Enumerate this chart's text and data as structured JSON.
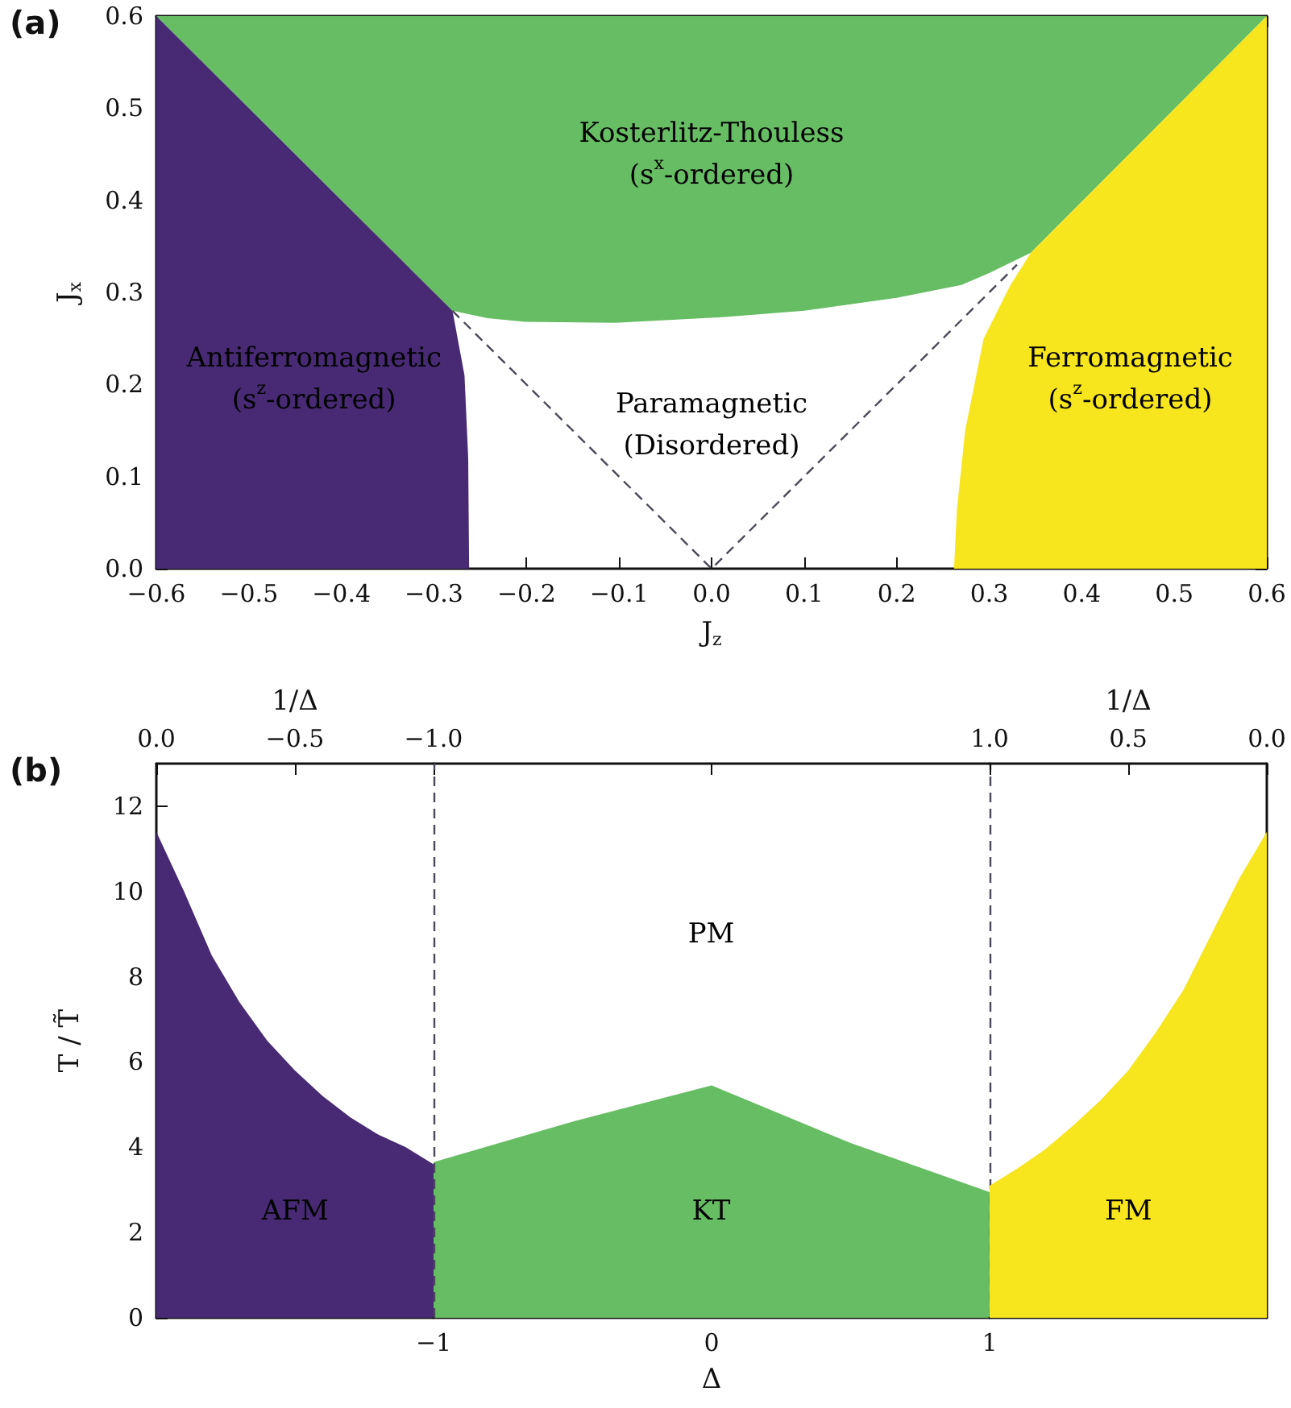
{
  "chart_data": [
    {
      "type": "area",
      "xlabel": "J$_{z}$",
      "ylabel": "J$_{x}$",
      "xlim": [
        -0.6,
        0.6
      ],
      "xticks": [
        {
          "value": -0.6,
          "label": "−0.6"
        },
        {
          "value": -0.5,
          "label": "−0.5"
        },
        {
          "value": -0.4,
          "label": "−0.4"
        },
        {
          "value": -0.3,
          "label": "−0.3"
        },
        {
          "value": -0.2,
          "label": "−0.2"
        },
        {
          "value": -0.1,
          "label": "−0.1"
        },
        {
          "value": 0,
          "label": "0.0"
        },
        0.1,
        0.2,
        0.3,
        0.4,
        0.5,
        0.6
      ],
      "ylim": [
        0,
        0.6
      ],
      "yticks": [
        {
          "value": 0,
          "label": "0.0"
        },
        0.1,
        0.2,
        0.3,
        0.4,
        0.5,
        0.6
      ],
      "series": [
        {
          "type": "area",
          "color": "#472a73",
          "x": [
            -0.6,
            -0.28,
            -0.267,
            -0.263,
            -0.262
          ],
          "values": [
            0.6,
            0.28,
            0.21,
            0.12,
            0
          ]
        },
        {
          "type": "area",
          "color": "#66bd63",
          "x": [
            -0.6,
            -0.28,
            -0.242,
            -0.202,
            -0.104,
            0.012,
            0.1,
            0.2,
            0.27,
            0.3,
            0.345,
            0.6
          ],
          "values": [
            0.6,
            0.28,
            0.272,
            0.268,
            0.267,
            0.273,
            0.28,
            0.294,
            0.308,
            0.321,
            0.343,
            0.6
          ]
        },
        {
          "type": "area",
          "color": "#f7e51e",
          "x": [
            0.262,
            0.265,
            0.274,
            0.294,
            0.323,
            0.345,
            0.6
          ],
          "values": [
            0,
            0.063,
            0.15,
            0.25,
            0.308,
            0.343,
            0.6
          ]
        },
        {
          "type": "line",
          "color": "#4a4a5a",
          "line_style": "dashed",
          "x": [
            -0.28,
            0,
            0.33
          ],
          "values": [
            0.28,
            0,
            0.33
          ]
        }
      ],
      "annotations": [
        "(a)",
        "Kosterlitz-Thouless\n(s$^{x}$-ordered)",
        "Antiferromagnetic\n(s$^{z}$-ordered)",
        "Paramagnetic\n(Disordered)",
        "Ferromagnetic\n(s$^{z}$-ordered)"
      ]
    },
    {
      "type": "area",
      "ylabel": "T / T̃",
      "xlabel": "1/Δ",
      "xlim": [
        0,
        -1
      ],
      "xticks": [
        {
          "value": 0,
          "label": "0.0"
        },
        {
          "value": -0.5,
          "label": "−0.5"
        },
        {
          "value": -1,
          "label": "−1.0"
        }
      ],
      "ylim": [
        0,
        13
      ],
      "yticks": [
        0,
        2,
        4,
        6,
        8,
        10,
        12
      ],
      "series": [
        {
          "type": "area",
          "color": "#472a73",
          "x": [
            0,
            -0.1,
            -0.2,
            -0.3,
            -0.4,
            -0.5,
            -0.6,
            -0.7,
            -0.8,
            -0.9,
            -1
          ],
          "values": [
            11.4,
            10.0,
            8.5,
            7.4,
            6.5,
            5.8,
            5.2,
            4.7,
            4.3,
            4.0,
            3.6
          ]
        }
      ],
      "annotations": [
        "(b)",
        "AFM"
      ]
    },
    {
      "type": "area",
      "xlabel": "Δ",
      "xlim": [
        -1,
        1
      ],
      "xticks": [
        {
          "value": -1,
          "label": "−1"
        },
        0,
        1
      ],
      "ylim": [
        0,
        13
      ],
      "tick_labels": "x",
      "series": [
        {
          "type": "area",
          "color": "#66bd63",
          "x": [
            -1,
            -0.5,
            0,
            0.5,
            1
          ],
          "values": [
            3.65,
            4.6,
            5.45,
            4.1,
            2.95
          ]
        }
      ],
      "ref_lines": [
        {
          "axis": "x",
          "value": -1,
          "color": "#4a4a5a",
          "line_style": "dashed"
        },
        {
          "axis": "x",
          "value": 1,
          "color": "#4a4a5a",
          "line_style": "dashed"
        }
      ],
      "annotations": [
        "PM",
        "KT"
      ]
    },
    {
      "type": "area",
      "xlabel": "1/Δ",
      "xlim": [
        1,
        0
      ],
      "xticks": [
        {
          "value": 1,
          "label": "1.0"
        },
        {
          "value": 0.5,
          "label": "0.5"
        },
        {
          "value": 0,
          "label": "0.0"
        }
      ],
      "ylim": [
        0,
        13
      ],
      "tick_labels": "x",
      "series": [
        {
          "type": "area",
          "color": "#f7e51e",
          "x": [
            1,
            0.9,
            0.8,
            0.7,
            0.6,
            0.5,
            0.4,
            0.3,
            0.2,
            0.1,
            0
          ],
          "values": [
            3.1,
            3.5,
            3.95,
            4.5,
            5.1,
            5.8,
            6.7,
            7.7,
            9.0,
            10.3,
            11.4
          ]
        }
      ],
      "annotations": [
        "FM"
      ]
    }
  ]
}
